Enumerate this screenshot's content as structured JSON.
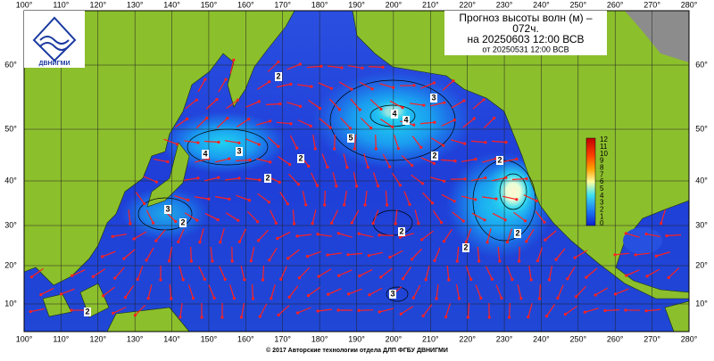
{
  "header": {
    "title_lines": [
      "Прогноз высоты волн (м) –",
      "072ч.",
      "на 20250603 12:00 ВСВ",
      "от 20250531 12:00 ВСВ"
    ],
    "logo": "ДВНИГМИ"
  },
  "map": {
    "lon_labels": [
      "100°",
      "110°",
      "120°",
      "130°",
      "140°",
      "150°",
      "160°",
      "170°",
      "180°",
      "190°",
      "200°",
      "210°",
      "220°",
      "230°",
      "240°",
      "250°",
      "260°",
      "270°",
      "280°"
    ],
    "lat_labels": [
      "60°",
      "50°",
      "40°",
      "30°",
      "20°",
      "10°"
    ],
    "colorbar_labels": [
      "12",
      "11",
      "10",
      "9",
      "8",
      "7",
      "6",
      "5",
      "4",
      "3",
      "2",
      "1",
      "0"
    ],
    "contour_labels": [
      "2",
      "2",
      "3",
      "4",
      "4",
      "3",
      "5",
      "4",
      "2",
      "2",
      "3",
      "2",
      "2",
      "3",
      "2",
      "2",
      "2",
      "2"
    ]
  },
  "footer": {
    "copyright": "© 2017 Авторские технологии отдела ДЛП ФГБУ ДВНИГМИ"
  }
}
